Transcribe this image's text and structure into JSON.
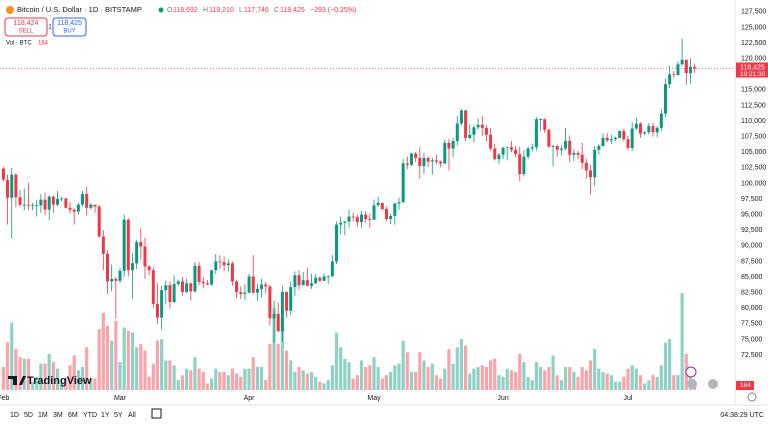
{
  "header": {
    "symbol": "Bitcoin / U.S. Dollar · 1D · BITSTAMP",
    "ohlc": [
      {
        "key": "O",
        "value": "118,692"
      },
      {
        "key": "H",
        "value": "119,210"
      },
      {
        "key": "L",
        "value": "117,746"
      },
      {
        "key": "C",
        "value": "118,425"
      }
    ],
    "change": "−293 (−0.25%)",
    "sell": {
      "price": "118,424",
      "label": "SELL"
    },
    "spread": "1",
    "buy": {
      "price": "118,425",
      "label": "BUY"
    },
    "volume_title": "Vol · BTC"
  },
  "logo": "TradingView",
  "toolbar": {
    "ranges": [
      "1D",
      "5D",
      "1M",
      "3M",
      "6M",
      "YTD",
      "1Y",
      "5Y",
      "All"
    ],
    "clock": "04:38:29 UTC"
  },
  "chart_data": {
    "type": "candlestick",
    "up_color": "#089981",
    "down_color": "#f23645",
    "grid": false,
    "ylim": [
      66100,
      129400
    ],
    "yticks": [
      {
        "value": 72500,
        "label": "72,500"
      },
      {
        "value": 75000,
        "label": "75,000"
      },
      {
        "value": 77500,
        "label": "77,500"
      },
      {
        "value": 80000,
        "label": "80,000"
      },
      {
        "value": 82500,
        "label": "82,500"
      },
      {
        "value": 85000,
        "label": "85,000"
      },
      {
        "value": 87500,
        "label": "87,500"
      },
      {
        "value": 90000,
        "label": "90,000"
      },
      {
        "value": 92500,
        "label": "92,500"
      },
      {
        "value": 95000,
        "label": "95,000"
      },
      {
        "value": 97500,
        "label": "97,500"
      },
      {
        "value": 100000,
        "label": "100,000"
      },
      {
        "value": 102500,
        "label": "102,500"
      },
      {
        "value": 105000,
        "label": "105,000"
      },
      {
        "value": 107500,
        "label": "107,500"
      },
      {
        "value": 110000,
        "label": "110,000"
      },
      {
        "value": 112500,
        "label": "112,500"
      },
      {
        "value": 115000,
        "label": "115,000"
      },
      {
        "value": 117500,
        "label": "117,500"
      },
      {
        "value": 120000,
        "label": "120,000"
      },
      {
        "value": 122500,
        "label": "122,500"
      },
      {
        "value": 125000,
        "label": "125,000"
      },
      {
        "value": 127500,
        "label": "127,500"
      }
    ],
    "price_label": {
      "value": 118425,
      "label": "118,425"
    },
    "countdown": "19:21:30",
    "categories": [
      "Feb",
      null,
      null,
      null,
      null,
      null,
      null,
      null,
      null,
      null,
      null,
      null,
      null,
      null,
      null,
      null,
      null,
      null,
      null,
      null,
      null,
      null,
      null,
      null,
      null,
      null,
      null,
      null,
      "Mar",
      null,
      null,
      null,
      null,
      null,
      null,
      null,
      null,
      null,
      null,
      null,
      null,
      null,
      null,
      null,
      null,
      null,
      null,
      null,
      null,
      null,
      null,
      null,
      null,
      null,
      null,
      null,
      null,
      null,
      null,
      "Apr",
      null,
      null,
      null,
      null,
      null,
      null,
      null,
      null,
      null,
      null,
      null,
      null,
      null,
      null,
      null,
      null,
      null,
      null,
      null,
      null,
      null,
      null,
      null,
      null,
      null,
      null,
      null,
      null,
      null,
      "May",
      null,
      null,
      null,
      null,
      null,
      null,
      null,
      null,
      null,
      null,
      null,
      null,
      null,
      null,
      null,
      null,
      null,
      null,
      null,
      null,
      null,
      null,
      null,
      null,
      null,
      null,
      null,
      null,
      null,
      null,
      "Jun",
      null,
      null,
      null,
      null,
      null,
      null,
      null,
      null,
      null,
      null,
      null,
      null,
      null,
      null,
      null,
      null,
      null,
      null,
      null,
      null,
      null,
      null,
      null,
      null,
      null,
      null,
      null,
      null,
      null,
      "Jul",
      null,
      null,
      null,
      null,
      null,
      null,
      null,
      null,
      null,
      null,
      null,
      null,
      null,
      null,
      null,
      null
    ],
    "candles": [
      [
        102400,
        102700,
        100300,
        100600
      ],
      [
        100600,
        101400,
        93400,
        97700
      ],
      [
        97700,
        102500,
        91200,
        101400
      ],
      [
        101400,
        101700,
        96200,
        97800
      ],
      [
        97800,
        99000,
        96200,
        96600
      ],
      [
        96600,
        99200,
        95700,
        96600
      ],
      [
        96600,
        100100,
        95700,
        96500
      ],
      [
        96500,
        96900,
        95700,
        96500
      ],
      [
        96500,
        97300,
        94700,
        96500
      ],
      [
        96500,
        98300,
        95300,
        97400
      ],
      [
        97400,
        98500,
        94900,
        95800
      ],
      [
        95800,
        98100,
        94100,
        97900
      ],
      [
        97900,
        98000,
        95300,
        96600
      ],
      [
        96600,
        98800,
        96300,
        97500
      ],
      [
        97500,
        97900,
        97100,
        97600
      ],
      [
        97600,
        97700,
        96000,
        96100
      ],
      [
        96100,
        97000,
        95200,
        95800
      ],
      [
        95800,
        96000,
        93400,
        95500
      ],
      [
        95500,
        96900,
        95000,
        96600
      ],
      [
        96600,
        98800,
        96300,
        98300
      ],
      [
        98300,
        99500,
        94900,
        96100
      ],
      [
        96100,
        96900,
        95800,
        96600
      ],
      [
        96600,
        96600,
        95300,
        96300
      ],
      [
        96300,
        96500,
        91300,
        91500
      ],
      [
        91500,
        92500,
        86100,
        88700
      ],
      [
        88700,
        89300,
        82300,
        84300
      ],
      [
        84300,
        87000,
        82700,
        84700
      ],
      [
        84700,
        85000,
        78300,
        84400
      ],
      [
        84400,
        86500,
        84000,
        86000
      ],
      [
        86000,
        95000,
        85000,
        94200
      ],
      [
        94200,
        94400,
        85100,
        86100
      ],
      [
        86100,
        88900,
        81500,
        87200
      ],
      [
        87200,
        91000,
        86300,
        90600
      ],
      [
        90600,
        92800,
        87800,
        89900
      ],
      [
        89900,
        91300,
        84700,
        86700
      ],
      [
        86700,
        86900,
        85300,
        86100
      ],
      [
        86100,
        86500,
        80000,
        80700
      ],
      [
        80700,
        84000,
        77500,
        78500
      ],
      [
        78500,
        83600,
        76600,
        82900
      ],
      [
        82900,
        84400,
        80600,
        83700
      ],
      [
        83700,
        84300,
        79900,
        81000
      ],
      [
        81000,
        85300,
        80800,
        83900
      ],
      [
        83900,
        84600,
        83600,
        84300
      ],
      [
        84300,
        85000,
        82000,
        82600
      ],
      [
        82600,
        84700,
        82400,
        84000
      ],
      [
        84000,
        84100,
        81200,
        82700
      ],
      [
        82700,
        87400,
        82500,
        86800
      ],
      [
        86800,
        87400,
        83700,
        84200
      ],
      [
        84200,
        85000,
        83200,
        84000
      ],
      [
        84000,
        84500,
        83700,
        83800
      ],
      [
        83800,
        86100,
        83600,
        86100
      ],
      [
        86100,
        88700,
        85500,
        87500
      ],
      [
        87500,
        88500,
        86300,
        87400
      ],
      [
        87400,
        88300,
        85900,
        86900
      ],
      [
        86900,
        87800,
        85900,
        87200
      ],
      [
        87200,
        87500,
        83600,
        84300
      ],
      [
        84300,
        84600,
        81600,
        82600
      ],
      [
        82600,
        83500,
        81500,
        82300
      ],
      [
        82300,
        83900,
        81300,
        82500
      ],
      [
        82500,
        85500,
        82400,
        85100
      ],
      [
        85100,
        88500,
        82300,
        82500
      ],
      [
        82500,
        83900,
        81200,
        83100
      ],
      [
        83100,
        84700,
        81700,
        83800
      ],
      [
        83800,
        84200,
        82400,
        83500
      ],
      [
        83500,
        83800,
        77200,
        78400
      ],
      [
        78400,
        81200,
        74500,
        79100
      ],
      [
        79100,
        80900,
        76200,
        76300
      ],
      [
        76300,
        83600,
        74600,
        82600
      ],
      [
        82600,
        82700,
        78500,
        79600
      ],
      [
        79600,
        84300,
        78900,
        83400
      ],
      [
        83400,
        85900,
        82000,
        85300
      ],
      [
        85300,
        86100,
        83000,
        83700
      ],
      [
        83700,
        85800,
        83700,
        84500
      ],
      [
        84500,
        86500,
        83600,
        83600
      ],
      [
        83600,
        85500,
        83100,
        84000
      ],
      [
        84000,
        85500,
        83900,
        84900
      ],
      [
        84900,
        85100,
        84200,
        84400
      ],
      [
        84400,
        85600,
        84400,
        85100
      ],
      [
        85100,
        85300,
        83900,
        85100
      ],
      [
        85100,
        88500,
        85100,
        87500
      ],
      [
        87500,
        93900,
        87100,
        93400
      ],
      [
        93400,
        94700,
        91900,
        93700
      ],
      [
        93700,
        94000,
        91700,
        93900
      ],
      [
        93900,
        95800,
        92900,
        94700
      ],
      [
        94700,
        95300,
        93900,
        94600
      ],
      [
        94600,
        95000,
        93100,
        93800
      ],
      [
        93800,
        95600,
        92900,
        95000
      ],
      [
        95000,
        95500,
        93700,
        94300
      ],
      [
        94300,
        95200,
        92900,
        94200
      ],
      [
        94200,
        97400,
        94100,
        96500
      ],
      [
        96500,
        97900,
        96300,
        96900
      ],
      [
        96900,
        96900,
        95700,
        95900
      ],
      [
        95900,
        96300,
        93900,
        94300
      ],
      [
        94300,
        95200,
        93500,
        94800
      ],
      [
        94800,
        96900,
        93400,
        96800
      ],
      [
        96800,
        97700,
        95800,
        97000
      ],
      [
        97000,
        103900,
        96900,
        103200
      ],
      [
        103200,
        104300,
        102300,
        103000
      ],
      [
        103000,
        104900,
        102800,
        104800
      ],
      [
        104800,
        105000,
        103400,
        104100
      ],
      [
        104100,
        105800,
        100800,
        102800
      ],
      [
        102800,
        104900,
        101500,
        104100
      ],
      [
        104100,
        104300,
        102600,
        103500
      ],
      [
        103500,
        104100,
        101400,
        103700
      ],
      [
        103700,
        104600,
        103100,
        103500
      ],
      [
        103500,
        103700,
        102600,
        103200
      ],
      [
        103200,
        107000,
        103100,
        106500
      ],
      [
        106500,
        107100,
        102100,
        105600
      ],
      [
        105600,
        107300,
        104200,
        106800
      ],
      [
        106800,
        110800,
        106100,
        109600
      ],
      [
        109600,
        111900,
        109300,
        111700
      ],
      [
        111700,
        111800,
        106800,
        107300
      ],
      [
        107300,
        109500,
        107100,
        107800
      ],
      [
        107800,
        109300,
        106600,
        109000
      ],
      [
        109000,
        110400,
        108600,
        109400
      ],
      [
        109400,
        110800,
        107600,
        108900
      ],
      [
        108900,
        109300,
        106800,
        107800
      ],
      [
        107800,
        108900,
        105300,
        105600
      ],
      [
        105600,
        106300,
        103700,
        103900
      ],
      [
        103900,
        104900,
        103100,
        104600
      ],
      [
        104600,
        105900,
        103900,
        105700
      ],
      [
        105700,
        105900,
        103700,
        105800
      ],
      [
        105800,
        106800,
        105000,
        105400
      ],
      [
        105400,
        106000,
        104200,
        104700
      ],
      [
        104700,
        105900,
        100400,
        101500
      ],
      [
        101500,
        105300,
        101100,
        104300
      ],
      [
        104300,
        105900,
        103900,
        105600
      ],
      [
        105600,
        106400,
        105100,
        105800
      ],
      [
        105800,
        110600,
        105300,
        110300
      ],
      [
        110300,
        110400,
        108400,
        110300
      ],
      [
        110300,
        110400,
        108100,
        108600
      ],
      [
        108600,
        108800,
        105700,
        105900
      ],
      [
        105900,
        106200,
        102700,
        106000
      ],
      [
        106000,
        106200,
        104300,
        105400
      ],
      [
        105400,
        106100,
        104500,
        105600
      ],
      [
        105600,
        108900,
        105300,
        106800
      ],
      [
        106800,
        107700,
        103400,
        104600
      ],
      [
        104600,
        105500,
        103600,
        104900
      ],
      [
        104900,
        105200,
        103900,
        104600
      ],
      [
        104600,
        106500,
        102300,
        103300
      ],
      [
        103300,
        103900,
        100800,
        102100
      ],
      [
        102100,
        103000,
        98200,
        101000
      ],
      [
        101000,
        106000,
        99600,
        105400
      ],
      [
        105400,
        106300,
        104600,
        106000
      ],
      [
        106000,
        108000,
        105900,
        107300
      ],
      [
        107300,
        108100,
        106600,
        106900
      ],
      [
        106900,
        107800,
        106300,
        107100
      ],
      [
        107100,
        107500,
        106800,
        107300
      ],
      [
        107300,
        108500,
        107200,
        108400
      ],
      [
        108400,
        108800,
        106800,
        107100
      ],
      [
        107100,
        107600,
        105300,
        105700
      ],
      [
        105700,
        109800,
        105200,
        108800
      ],
      [
        108800,
        110500,
        108600,
        109600
      ],
      [
        109600,
        109800,
        107300,
        108000
      ],
      [
        108000,
        108400,
        107800,
        108200
      ],
      [
        108200,
        109700,
        107800,
        109200
      ],
      [
        109200,
        109700,
        107500,
        108200
      ],
      [
        108200,
        109200,
        107400,
        108900
      ],
      [
        108900,
        111900,
        108400,
        111200
      ],
      [
        111200,
        116800,
        110600,
        115900
      ],
      [
        115900,
        118900,
        115300,
        117500
      ],
      [
        117500,
        118000,
        116900,
        117400
      ],
      [
        117400,
        119500,
        117300,
        119100
      ],
      [
        119100,
        123200,
        118900,
        119800
      ],
      [
        119800,
        119900,
        115800,
        117700
      ],
      [
        117700,
        120100,
        116000,
        118700
      ],
      [
        118692,
        119210,
        117746,
        118425
      ]
    ],
    "volume": [
      1400,
      2900,
      4100,
      2500,
      2000,
      1900,
      1900,
      500,
      800,
      1600,
      1600,
      2200,
      1700,
      1300,
      400,
      700,
      1500,
      2100,
      1200,
      1400,
      2600,
      700,
      700,
      3700,
      4700,
      3900,
      3000,
      4200,
      1700,
      3800,
      3600,
      3500,
      2600,
      2800,
      2400,
      800,
      1600,
      3000,
      3100,
      1800,
      1800,
      1500,
      600,
      900,
      1300,
      1200,
      2000,
      1300,
      1100,
      400,
      700,
      1300,
      1100,
      1100,
      900,
      1300,
      1000,
      800,
      1300,
      1300,
      2000,
      1400,
      1400,
      600,
      2800,
      5000,
      2800,
      4400,
      2400,
      1800,
      1100,
      1400,
      1200,
      1000,
      1100,
      800,
      500,
      400,
      600,
      1500,
      3500,
      2600,
      1900,
      1700,
      700,
      900,
      1800,
      1400,
      1500,
      2000,
      1400,
      700,
      900,
      1100,
      1500,
      1600,
      3000,
      2300,
      1100,
      1100,
      2300,
      1800,
      1400,
      1600,
      900,
      700,
      1300,
      2500,
      1600,
      2600,
      3100,
      2700,
      1000,
      1300,
      1400,
      1500,
      1400,
      1800,
      1900,
      900,
      800,
      1300,
      1200,
      1100,
      2200,
      1700,
      800,
      600,
      1700,
      1400,
      1200,
      1400,
      2100,
      900,
      600,
      1400,
      1400,
      1100,
      800,
      1400,
      1200,
      1800,
      2500,
      1300,
      1100,
      1000,
      900,
      500,
      500,
      800,
      1300,
      1500,
      1300,
      900,
      400,
      600,
      900,
      800,
      1500,
      2900,
      3100,
      900,
      900,
      5900,
      2200,
      1400,
      184
    ]
  }
}
